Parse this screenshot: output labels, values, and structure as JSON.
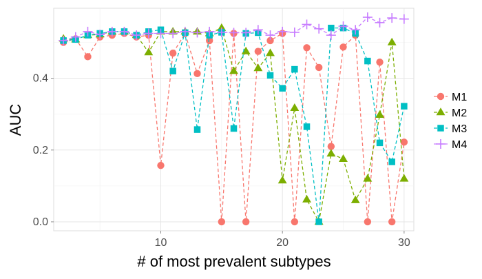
{
  "chart_data": {
    "type": "line",
    "xlabel": "# of most prevalent subtypes",
    "ylabel": "AUC",
    "xlim": [
      1.2,
      30.8
    ],
    "ylim": [
      -0.025,
      0.595
    ],
    "x_ticks": [
      10,
      20,
      30
    ],
    "x_tick_labels": [
      "10",
      "20",
      "30"
    ],
    "y_ticks": [
      0.0,
      0.2,
      0.4
    ],
    "y_tick_labels": [
      "0.0",
      "0.2",
      "0.4"
    ],
    "grid": true,
    "legend_position": "right",
    "line_style": "dashed",
    "x": [
      2,
      3,
      4,
      5,
      6,
      7,
      8,
      9,
      10,
      11,
      12,
      13,
      14,
      15,
      16,
      17,
      18,
      19,
      20,
      21,
      22,
      23,
      24,
      25,
      26,
      27,
      28,
      29,
      30
    ],
    "series": [
      {
        "name": "M1",
        "marker": "circle",
        "color": "#F8766D",
        "values": [
          0.5,
          0.51,
          0.46,
          0.515,
          0.52,
          0.525,
          0.515,
          0.52,
          0.157,
          0.47,
          0.525,
          0.413,
          0.505,
          0.0,
          0.525,
          0.0,
          0.475,
          0.505,
          0.525,
          0.0,
          0.485,
          0.43,
          0.21,
          0.487,
          0.52,
          0.0,
          0.445,
          0.0,
          0.222
        ]
      },
      {
        "name": "M2",
        "marker": "triangle",
        "color": "#7CAE00",
        "values": [
          0.51,
          0.508,
          0.52,
          0.522,
          0.53,
          0.53,
          0.52,
          0.472,
          0.53,
          0.53,
          0.53,
          0.53,
          0.525,
          0.54,
          0.42,
          0.475,
          0.428,
          0.47,
          0.115,
          0.317,
          0.062,
          0.0,
          0.19,
          0.175,
          0.06,
          0.12,
          0.298,
          0.5,
          0.12
        ]
      },
      {
        "name": "M3",
        "marker": "square",
        "color": "#00BFC4",
        "values": [
          0.505,
          0.508,
          0.52,
          0.525,
          0.53,
          0.53,
          0.52,
          0.53,
          0.535,
          0.42,
          0.527,
          0.257,
          0.52,
          0.528,
          0.26,
          0.525,
          0.527,
          0.408,
          0.372,
          0.425,
          0.265,
          0.0,
          0.54,
          0.54,
          0.525,
          0.448,
          0.22,
          0.167,
          0.322
        ]
      },
      {
        "name": "M4",
        "marker": "plus",
        "color": "#C77CFF",
        "values": [
          0.505,
          0.515,
          0.53,
          0.522,
          0.53,
          0.53,
          0.52,
          0.525,
          0.525,
          0.525,
          0.53,
          0.527,
          0.53,
          0.528,
          0.527,
          0.527,
          0.535,
          0.52,
          0.53,
          0.528,
          0.55,
          0.538,
          0.52,
          0.545,
          0.535,
          0.57,
          0.555,
          0.568,
          0.565
        ]
      }
    ]
  }
}
